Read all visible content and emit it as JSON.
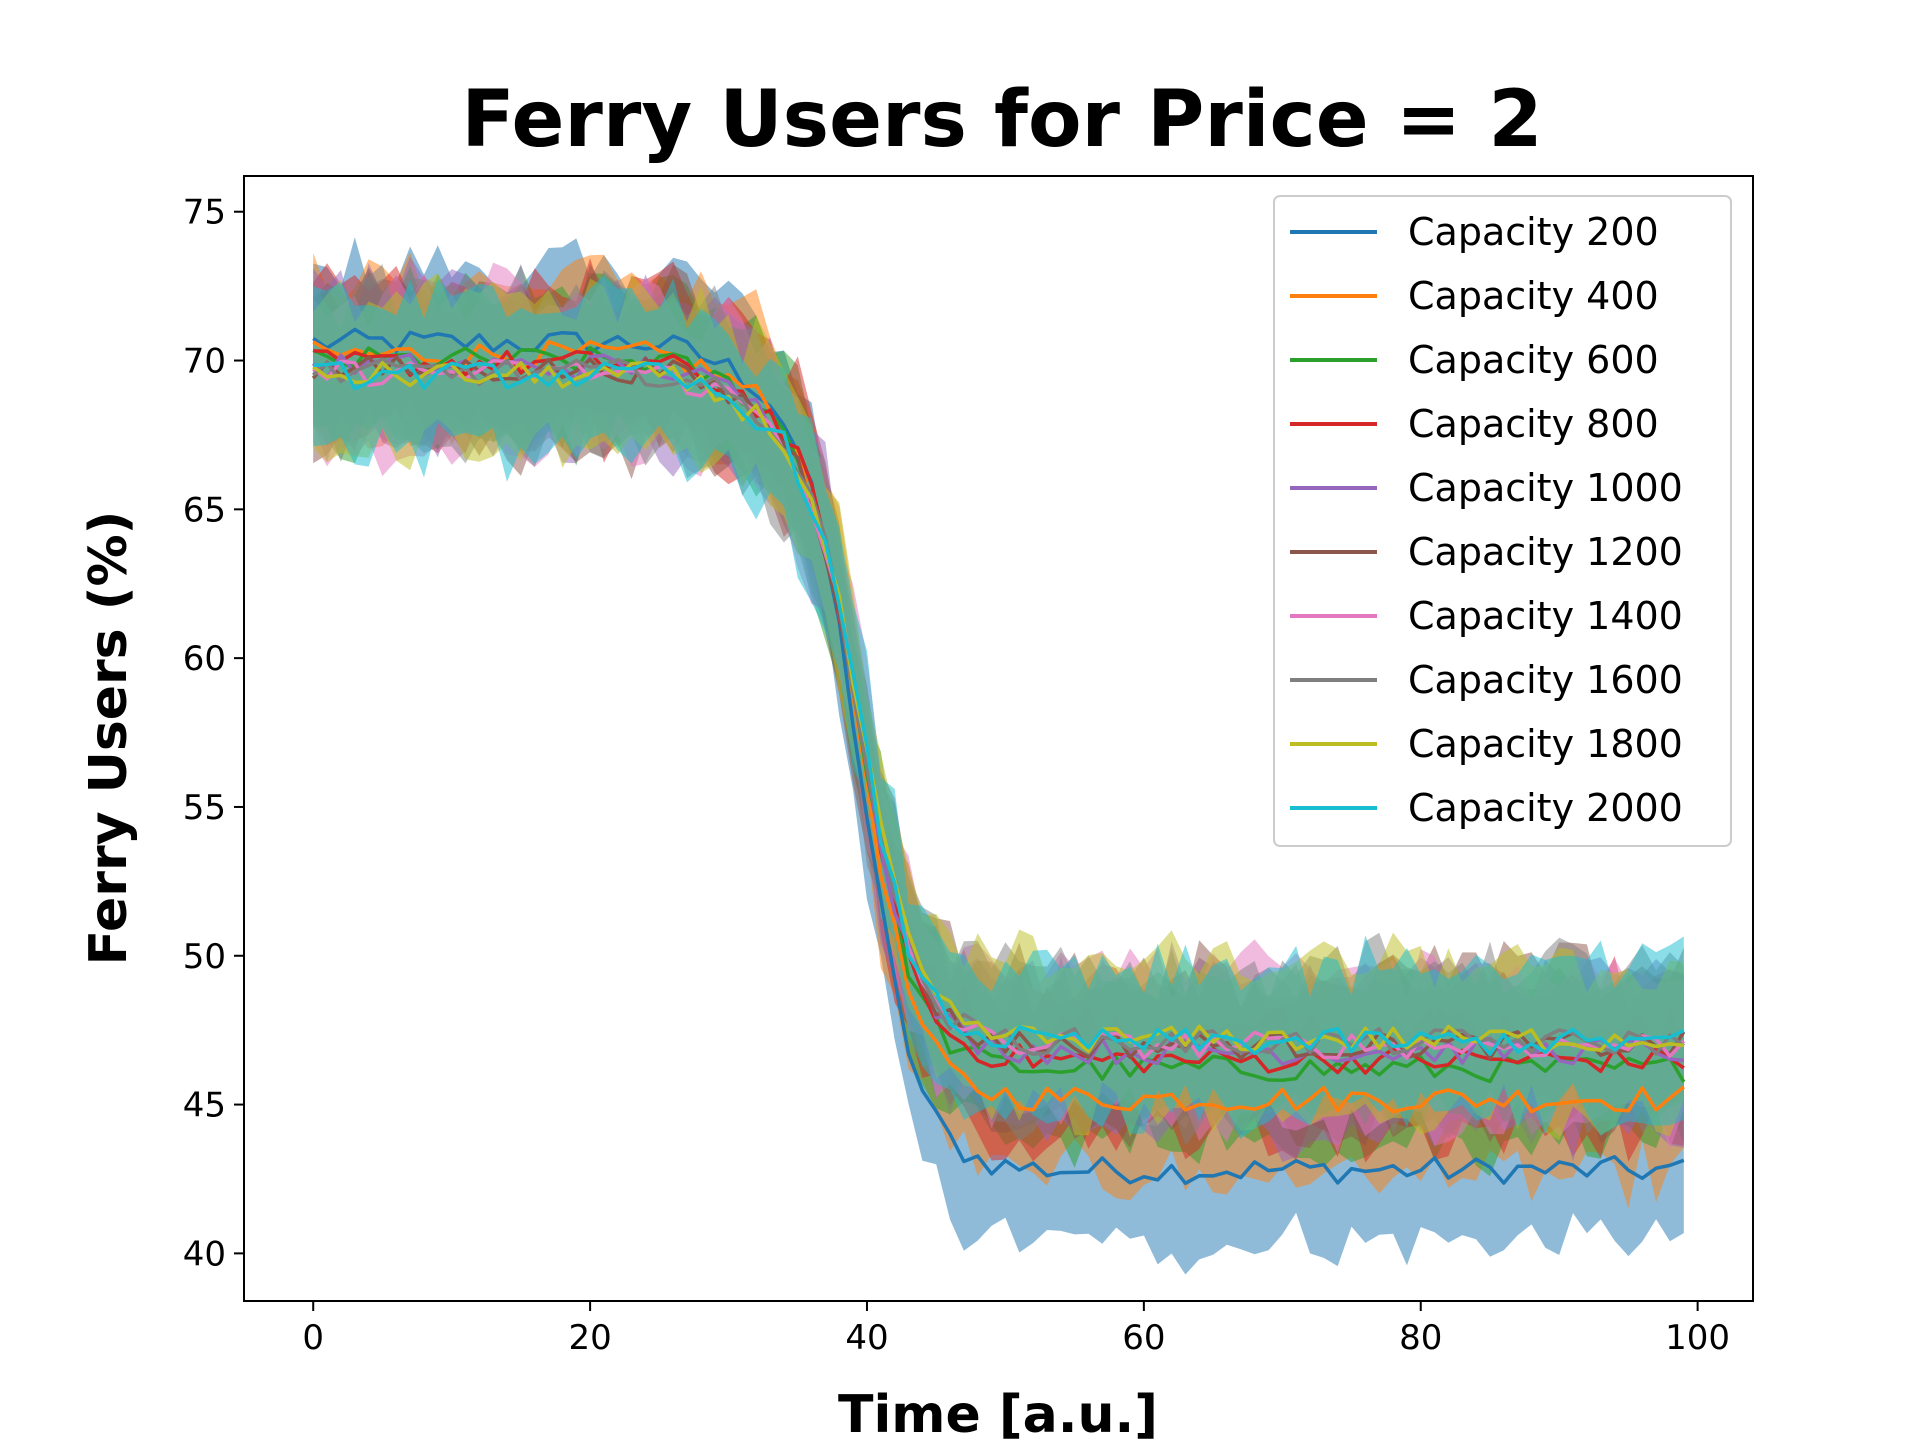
{
  "chart_data": {
    "type": "line",
    "title": "Ferry Users for Price = 2",
    "xlabel": "Time [a.u.]",
    "ylabel": "Ferry Users (%)",
    "xlim": [
      -5,
      104
    ],
    "ylim": [
      38.4,
      76.2
    ],
    "xticks": [
      0,
      20,
      40,
      60,
      80,
      100
    ],
    "yticks": [
      40,
      45,
      50,
      55,
      60,
      65,
      70,
      75
    ],
    "x_range": [
      0,
      99
    ],
    "transition": {
      "midpoint_x": 39.5,
      "steepness": 0.5
    },
    "legend_position": "top-right",
    "band_opacity": 0.5,
    "series": [
      {
        "name": "Capacity 200",
        "color": "#1f77b4",
        "start": 70.6,
        "end": 42.8,
        "band_halfwidth": 2.4
      },
      {
        "name": "Capacity 400",
        "color": "#ff7f0e",
        "start": 70.2,
        "end": 45.2,
        "band_halfwidth": 2.5
      },
      {
        "name": "Capacity 600",
        "color": "#2ca02c",
        "start": 70.0,
        "end": 46.2,
        "band_halfwidth": 2.5
      },
      {
        "name": "Capacity 800",
        "color": "#d62728",
        "start": 69.9,
        "end": 46.5,
        "band_halfwidth": 2.5
      },
      {
        "name": "Capacity 1000",
        "color": "#9467bd",
        "start": 69.8,
        "end": 46.8,
        "band_halfwidth": 2.5
      },
      {
        "name": "Capacity 1200",
        "color": "#8c564b",
        "start": 69.7,
        "end": 47.0,
        "band_halfwidth": 2.5
      },
      {
        "name": "Capacity 1400",
        "color": "#e377c2",
        "start": 69.6,
        "end": 47.0,
        "band_halfwidth": 2.5
      },
      {
        "name": "Capacity 1600",
        "color": "#7f7f7f",
        "start": 69.6,
        "end": 47.1,
        "band_halfwidth": 2.5
      },
      {
        "name": "Capacity 1800",
        "color": "#bcbd22",
        "start": 69.5,
        "end": 47.2,
        "band_halfwidth": 2.5
      },
      {
        "name": "Capacity 2000",
        "color": "#17becf",
        "start": 69.5,
        "end": 47.1,
        "band_halfwidth": 2.5
      }
    ]
  }
}
